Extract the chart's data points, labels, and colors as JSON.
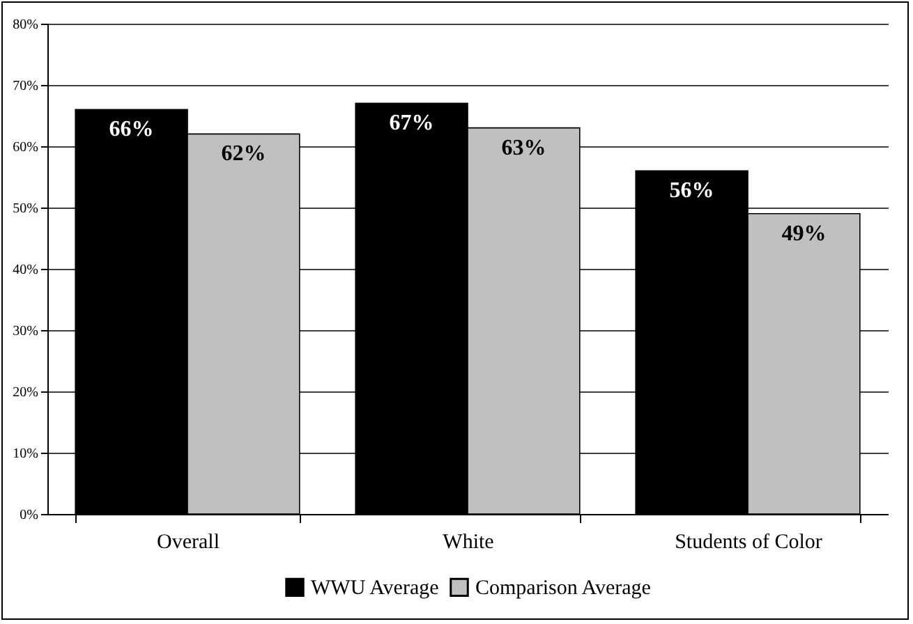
{
  "chart_data": {
    "type": "bar",
    "categories": [
      "Overall",
      "White",
      "Students of Color"
    ],
    "series": [
      {
        "name": "WWU Average",
        "color": "#000000",
        "values": [
          66,
          67,
          56
        ],
        "value_labels": [
          "66%",
          "67%",
          "56%"
        ]
      },
      {
        "name": "Comparison Average",
        "color": "#c0c0c0",
        "values": [
          62,
          63,
          49
        ],
        "value_labels": [
          "62%",
          "63%",
          "49%"
        ]
      }
    ],
    "ylim": [
      0,
      80
    ],
    "yticks": [
      {
        "value": 0,
        "label": "0%"
      },
      {
        "value": 10,
        "label": "10%"
      },
      {
        "value": 20,
        "label": "20%"
      },
      {
        "value": 30,
        "label": "30%"
      },
      {
        "value": 40,
        "label": "40%"
      },
      {
        "value": 50,
        "label": "50%"
      },
      {
        "value": 60,
        "label": "60%"
      },
      {
        "value": 70,
        "label": "70%"
      },
      {
        "value": 80,
        "label": "80%"
      }
    ],
    "grid": "y",
    "legend": "bottom"
  }
}
